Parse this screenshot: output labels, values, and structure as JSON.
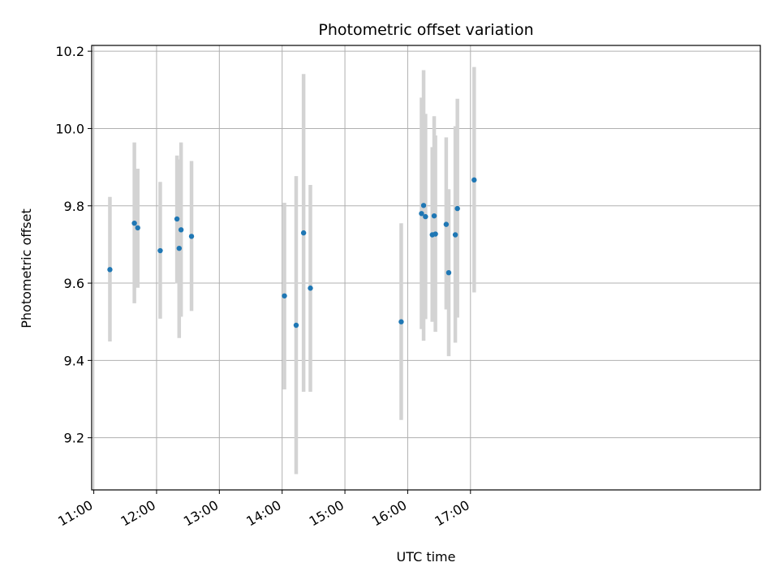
{
  "chart_data": {
    "type": "scatter",
    "title": "Photometric offset variation",
    "xlabel": "UTC time",
    "ylabel": "Photometric offset",
    "xlim_minutes": [
      658,
      1297
    ],
    "ylim": [
      9.065,
      10.215
    ],
    "grid": true,
    "x_ticks": [
      {
        "label": "11:00",
        "minutes": 660
      },
      {
        "label": "12:00",
        "minutes": 720
      },
      {
        "label": "13:00",
        "minutes": 780
      },
      {
        "label": "14:00",
        "minutes": 840
      },
      {
        "label": "15:00",
        "minutes": 900
      },
      {
        "label": "16:00",
        "minutes": 960
      },
      {
        "label": "17:00",
        "minutes": 1020
      }
    ],
    "y_ticks": [
      {
        "label": "9.2",
        "value": 9.2
      },
      {
        "label": "9.4",
        "value": 9.4
      },
      {
        "label": "9.6",
        "value": 9.6
      },
      {
        "label": "9.8",
        "value": 9.8
      },
      {
        "label": "10.0",
        "value": 10.0
      },
      {
        "label": "10.2",
        "value": 10.2
      }
    ],
    "colors": {
      "points": "#1f77b4",
      "errorbars": "#d3d3d3",
      "grid": "#b0b0b0",
      "axes": "#000000"
    },
    "points": [
      {
        "t": 675.4,
        "y": 9.635,
        "lo": 9.449,
        "hi": 9.823
      },
      {
        "t": 698.8,
        "y": 9.755,
        "lo": 9.548,
        "hi": 9.964
      },
      {
        "t": 702.0,
        "y": 9.743,
        "lo": 9.588,
        "hi": 9.896
      },
      {
        "t": 723.5,
        "y": 9.684,
        "lo": 9.508,
        "hi": 9.862
      },
      {
        "t": 739.5,
        "y": 9.766,
        "lo": 9.599,
        "hi": 9.93
      },
      {
        "t": 741.6,
        "y": 9.69,
        "lo": 9.458,
        "hi": 9.92
      },
      {
        "t": 743.4,
        "y": 9.738,
        "lo": 9.513,
        "hi": 9.964
      },
      {
        "t": 753.4,
        "y": 9.721,
        "lo": 9.528,
        "hi": 9.916
      },
      {
        "t": 842.2,
        "y": 9.567,
        "lo": 9.325,
        "hi": 9.808
      },
      {
        "t": 853.4,
        "y": 9.491,
        "lo": 9.106,
        "hi": 9.877
      },
      {
        "t": 860.5,
        "y": 9.73,
        "lo": 9.319,
        "hi": 10.141
      },
      {
        "t": 867.0,
        "y": 9.587,
        "lo": 9.319,
        "hi": 9.854
      },
      {
        "t": 953.8,
        "y": 9.5,
        "lo": 9.246,
        "hi": 9.755
      },
      {
        "t": 973.2,
        "y": 9.78,
        "lo": 9.481,
        "hi": 10.08
      },
      {
        "t": 975.2,
        "y": 9.801,
        "lo": 9.451,
        "hi": 10.151
      },
      {
        "t": 977.0,
        "y": 9.772,
        "lo": 9.507,
        "hi": 10.038
      },
      {
        "t": 983.5,
        "y": 9.725,
        "lo": 9.5,
        "hi": 9.952
      },
      {
        "t": 985.3,
        "y": 9.774,
        "lo": 9.519,
        "hi": 10.032
      },
      {
        "t": 986.5,
        "y": 9.727,
        "lo": 9.474,
        "hi": 9.982
      },
      {
        "t": 996.8,
        "y": 9.752,
        "lo": 9.532,
        "hi": 9.977
      },
      {
        "t": 999.2,
        "y": 9.627,
        "lo": 9.411,
        "hi": 9.843
      },
      {
        "t": 1005.5,
        "y": 9.725,
        "lo": 9.446,
        "hi": 10.006
      },
      {
        "t": 1007.5,
        "y": 9.793,
        "lo": 9.511,
        "hi": 10.077
      },
      {
        "t": 1023.5,
        "y": 9.867,
        "lo": 9.576,
        "hi": 10.159
      }
    ]
  }
}
